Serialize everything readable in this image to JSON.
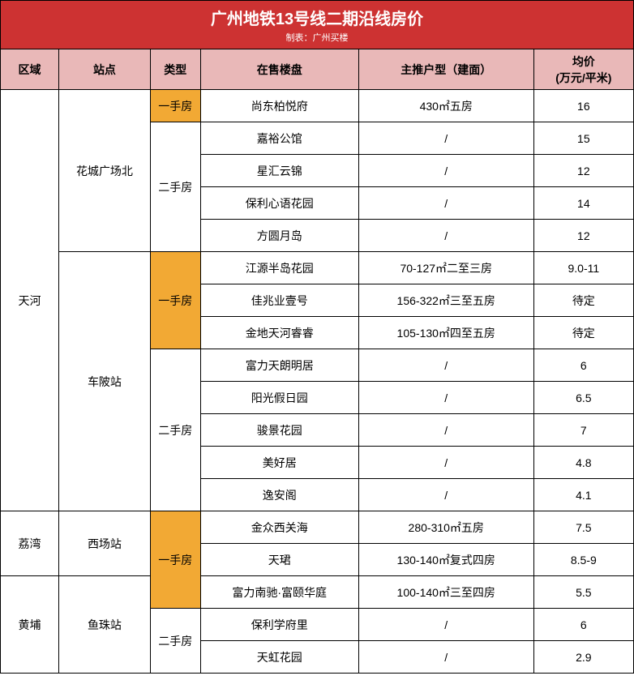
{
  "title": "广州地铁13号线二期沿线房价",
  "subtitle": "制表：广州买楼",
  "colors": {
    "title_bg": "#cd3232",
    "title_text": "#ffffff",
    "header_bg": "#e9b8b8",
    "type_highlight_bg": "#f2a934",
    "border": "#000000",
    "cell_bg": "#ffffff"
  },
  "columns": {
    "region": "区域",
    "station": "站点",
    "type": "类型",
    "project": "在售楼盘",
    "layout": "主推户型（建面）",
    "price_line1": "均价",
    "price_line2": "(万元/平米)"
  },
  "type_labels": {
    "new": "一手房",
    "second": "二手房"
  },
  "regions": {
    "tianhe": "天河",
    "liwan": "荔湾",
    "huangpu": "黄埔"
  },
  "stations": {
    "hcgcb": "花城广场北",
    "clz": "车陂站",
    "xcz": "西场站",
    "yzz": "鱼珠站"
  },
  "rows": [
    {
      "project": "尚东柏悦府",
      "layout": "430㎡五房",
      "price": "16"
    },
    {
      "project": "嘉裕公馆",
      "layout": "/",
      "price": "15"
    },
    {
      "project": "星汇云锦",
      "layout": "/",
      "price": "12"
    },
    {
      "project": "保利心语花园",
      "layout": "/",
      "price": "14"
    },
    {
      "project": "方圆月岛",
      "layout": "/",
      "price": "12"
    },
    {
      "project": "江源半岛花园",
      "layout": "70-127㎡二至三房",
      "price": "9.0-11"
    },
    {
      "project": "佳兆业壹号",
      "layout": "156-322㎡三至五房",
      "price": "待定"
    },
    {
      "project": "金地天河睿睿",
      "layout": "105-130㎡四至五房",
      "price": "待定"
    },
    {
      "project": "富力天朗明居",
      "layout": "/",
      "price": "6"
    },
    {
      "project": "阳光假日园",
      "layout": "/",
      "price": "6.5"
    },
    {
      "project": "骏景花园",
      "layout": "/",
      "price": "7"
    },
    {
      "project": "美好居",
      "layout": "/",
      "price": "4.8"
    },
    {
      "project": "逸安阁",
      "layout": "/",
      "price": "4.1"
    },
    {
      "project": "金众西关海",
      "layout": "280-310㎡五房",
      "price": "7.5"
    },
    {
      "project": "天珺",
      "layout": "130-140㎡复式四房",
      "price": "8.5-9"
    },
    {
      "project": "富力南驰·富颐华庭",
      "layout": "100-140㎡三至四房",
      "price": "5.5"
    },
    {
      "project": "保利学府里",
      "layout": "/",
      "price": "6"
    },
    {
      "project": "天虹花园",
      "layout": "/",
      "price": "2.9"
    }
  ]
}
